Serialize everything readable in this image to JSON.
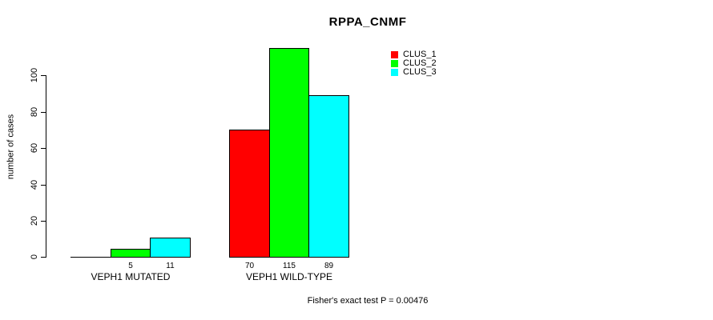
{
  "chart_data": {
    "type": "bar",
    "title": "RPPA_CNMF",
    "xlabel": "",
    "ylabel": "number of cases",
    "ylim": [
      0,
      115
    ],
    "yticks": [
      0,
      20,
      40,
      60,
      80,
      100
    ],
    "grid": false,
    "legend_position": "top-right",
    "categories": [
      "VEPH1 MUTATED",
      "VEPH1 WILD-TYPE"
    ],
    "series": [
      {
        "name": "CLUS_1",
        "color": "#ff0000",
        "values": [
          0,
          70
        ]
      },
      {
        "name": "CLUS_2",
        "color": "#00ff00",
        "values": [
          5,
          115
        ]
      },
      {
        "name": "CLUS_3",
        "color": "#00ffff",
        "values": [
          11,
          89
        ]
      }
    ],
    "bar_value_labels": [
      [
        "",
        "5",
        "11"
      ],
      [
        "70",
        "115",
        "89"
      ]
    ],
    "annotation": "Fisher's exact test P = 0.00476"
  }
}
